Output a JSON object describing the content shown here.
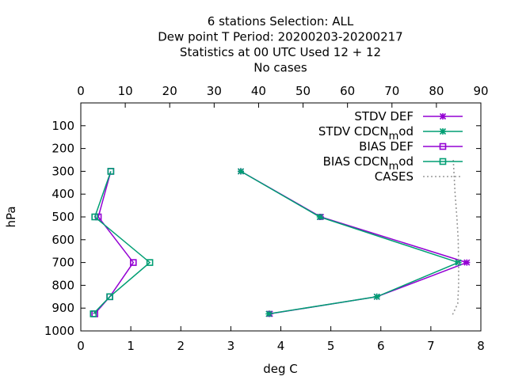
{
  "chart_data": {
    "type": "line",
    "title_lines": [
      "6 stations Selection: ALL",
      "Dew point T  Period: 20200203-20200217",
      "Statistics at 00 UTC  Used  12 + 12",
      "No cases"
    ],
    "xlabel": "deg C",
    "ylabel": "hPa",
    "xlim": [
      0,
      8
    ],
    "x_ticks": [
      "0",
      "1",
      "2",
      "3",
      "4",
      "5",
      "6",
      "7",
      "8"
    ],
    "x2lim": [
      0,
      90
    ],
    "x2_ticks": [
      "0",
      "10",
      "20",
      "30",
      "40",
      "50",
      "60",
      "70",
      "80",
      "90"
    ],
    "ylim": [
      1000,
      0
    ],
    "y_ticks": [
      "100",
      "200",
      "300",
      "400",
      "500",
      "600",
      "700",
      "800",
      "900",
      "1000"
    ],
    "grid": false,
    "legend_position": "top-right",
    "series": [
      {
        "name": "STDV DEF",
        "color": "#9400d3",
        "marker": "star",
        "x": [
          3.2,
          4.8,
          7.72,
          5.92,
          3.78
        ],
        "y": [
          300,
          500,
          700,
          850,
          925
        ]
      },
      {
        "name": "STDV CDCN_mod",
        "color": "#009e73",
        "marker": "star",
        "x": [
          3.2,
          4.78,
          7.55,
          5.92,
          3.76
        ],
        "y": [
          300,
          500,
          700,
          850,
          925
        ]
      },
      {
        "name": "BIAS DEF",
        "color": "#9400d3",
        "marker": "square",
        "x": [
          0.6,
          0.35,
          1.05,
          0.58,
          0.28
        ],
        "y": [
          300,
          500,
          700,
          850,
          925
        ]
      },
      {
        "name": "BIAS CDCN_mod",
        "color": "#009e73",
        "marker": "square",
        "x": [
          0.6,
          0.28,
          1.38,
          0.58,
          0.25
        ],
        "y": [
          300,
          500,
          700,
          850,
          925
        ]
      },
      {
        "name": "CASES",
        "color": "#999999",
        "marker": "none",
        "dashed": true,
        "axis": "x2",
        "x": [
          83.8,
          84.2,
          84.6,
          84.9,
          85.0,
          85.0,
          84.8,
          83.6
        ],
        "y": [
          250,
          400,
          500,
          600,
          700,
          800,
          880,
          930
        ]
      }
    ]
  }
}
